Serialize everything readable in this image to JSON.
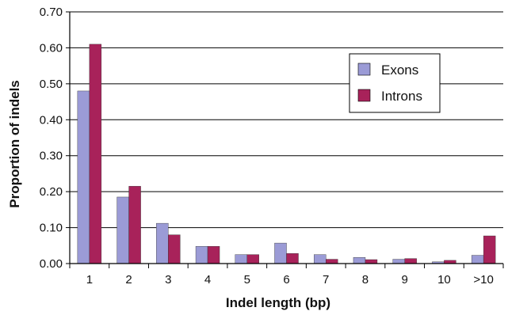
{
  "chart_data": {
    "type": "bar",
    "categories": [
      "1",
      "2",
      "3",
      "4",
      "5",
      "6",
      "7",
      "8",
      "9",
      "10",
      ">10"
    ],
    "series": [
      {
        "name": "Exons",
        "color": "#9b9bd6",
        "values": [
          0.48,
          0.185,
          0.112,
          0.048,
          0.025,
          0.057,
          0.025,
          0.017,
          0.012,
          0.005,
          0.023
        ]
      },
      {
        "name": "Introns",
        "color": "#a8225a",
        "values": [
          0.61,
          0.215,
          0.08,
          0.048,
          0.025,
          0.028,
          0.012,
          0.011,
          0.014,
          0.009,
          0.077
        ]
      }
    ],
    "xlabel": "Indel length (bp)",
    "ylabel": "Proportion of indels",
    "ylim": [
      0,
      0.7
    ],
    "yticks": [
      "0.00",
      "0.10",
      "0.20",
      "0.30",
      "0.40",
      "0.50",
      "0.60",
      "0.70"
    ],
    "grid": true,
    "legend_position": "top-right"
  }
}
